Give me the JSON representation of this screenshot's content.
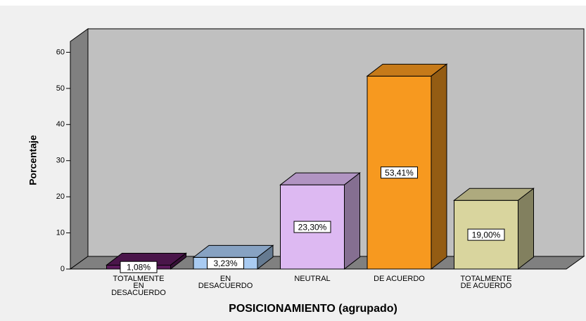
{
  "chart_data": {
    "type": "bar3d",
    "x_label": "POSICIONAMIENTO (agrupado)",
    "y_label": "Porcentaje",
    "categories": [
      [
        "TOTALMENTE",
        "EN",
        "DESACUERDO"
      ],
      [
        "EN",
        "DESACUERDO"
      ],
      [
        "NEUTRAL"
      ],
      [
        "DE ACUERDO"
      ],
      [
        "TOTALMENTE",
        "DE ACUERDO"
      ]
    ],
    "values": [
      1.08,
      3.23,
      23.3,
      53.41,
      19.0
    ],
    "value_labels": [
      "1,08%",
      "3,23%",
      "23,30%",
      "53,41%",
      "19,00%"
    ],
    "colors": [
      "#5c1a5c",
      "#a9cbf2",
      "#ddb9f2",
      "#f7991f",
      "#d9d59e"
    ],
    "ylim": [
      0,
      63
    ],
    "yticks": [
      0,
      10,
      20,
      30,
      40,
      50,
      60
    ]
  }
}
